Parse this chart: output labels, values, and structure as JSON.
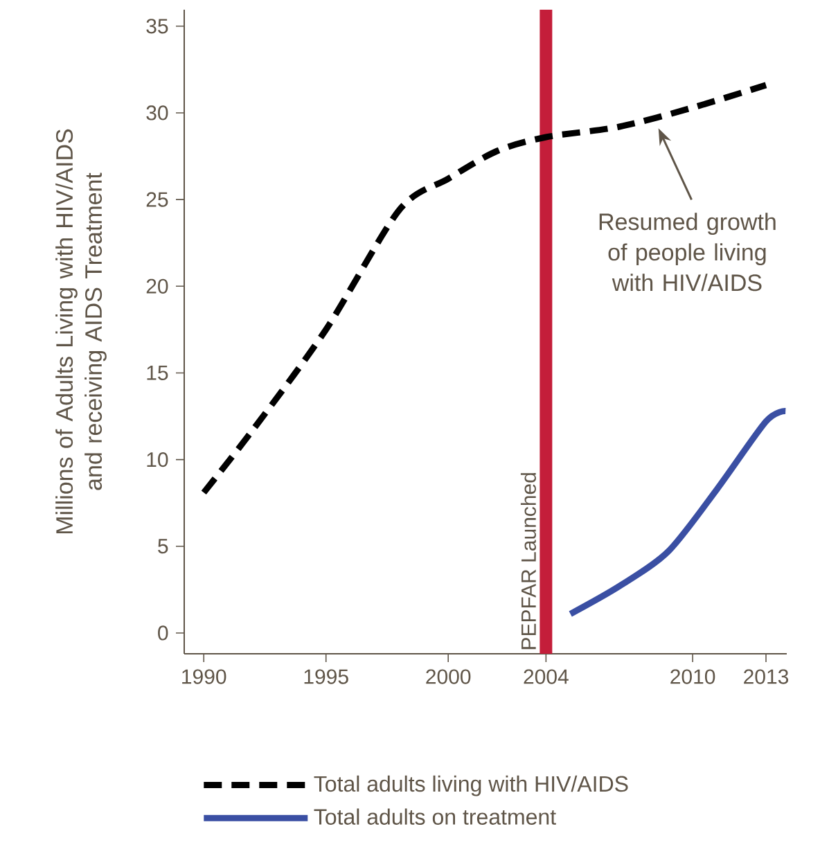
{
  "chart_data": {
    "type": "line",
    "ylabel": "Millions of Adults Living with HIV/AIDS and receiving AIDS Treatment",
    "xlim": [
      1989.2,
      2013.85
    ],
    "ylim": [
      -1.2,
      35.95
    ],
    "xticks": [
      1990,
      1995,
      2000,
      2004,
      2010,
      2013
    ],
    "yticks": [
      0,
      5,
      10,
      15,
      20,
      25,
      30,
      35
    ],
    "series": [
      {
        "name": "Total adults living with HIV/AIDS",
        "color": "#000000",
        "line_style": "dashed",
        "x": [
          1990,
          1992,
          1995,
          1998,
          2000,
          2002,
          2004,
          2007,
          2010,
          2013
        ],
        "values": [
          8.1,
          11.7,
          17.5,
          24.4,
          26.2,
          27.8,
          28.6,
          29.2,
          30.3,
          31.6
        ]
      },
      {
        "name": "Total adults on treatment",
        "color": "#3a4fa3",
        "line_style": "solid",
        "x": [
          2005,
          2007,
          2009,
          2011,
          2013,
          2013.8
        ],
        "values": [
          1.1,
          2.7,
          4.7,
          8.3,
          12.2,
          12.8
        ]
      }
    ],
    "ref_lines": [
      {
        "axis": "x",
        "value": 2004,
        "label": "PEPFAR Launched",
        "color": "#c41e3a"
      }
    ],
    "annotations": [
      "Resumed growth of people living with HIV/AIDS"
    ],
    "grid": false,
    "legend": "bottom",
    "marker": "none"
  }
}
